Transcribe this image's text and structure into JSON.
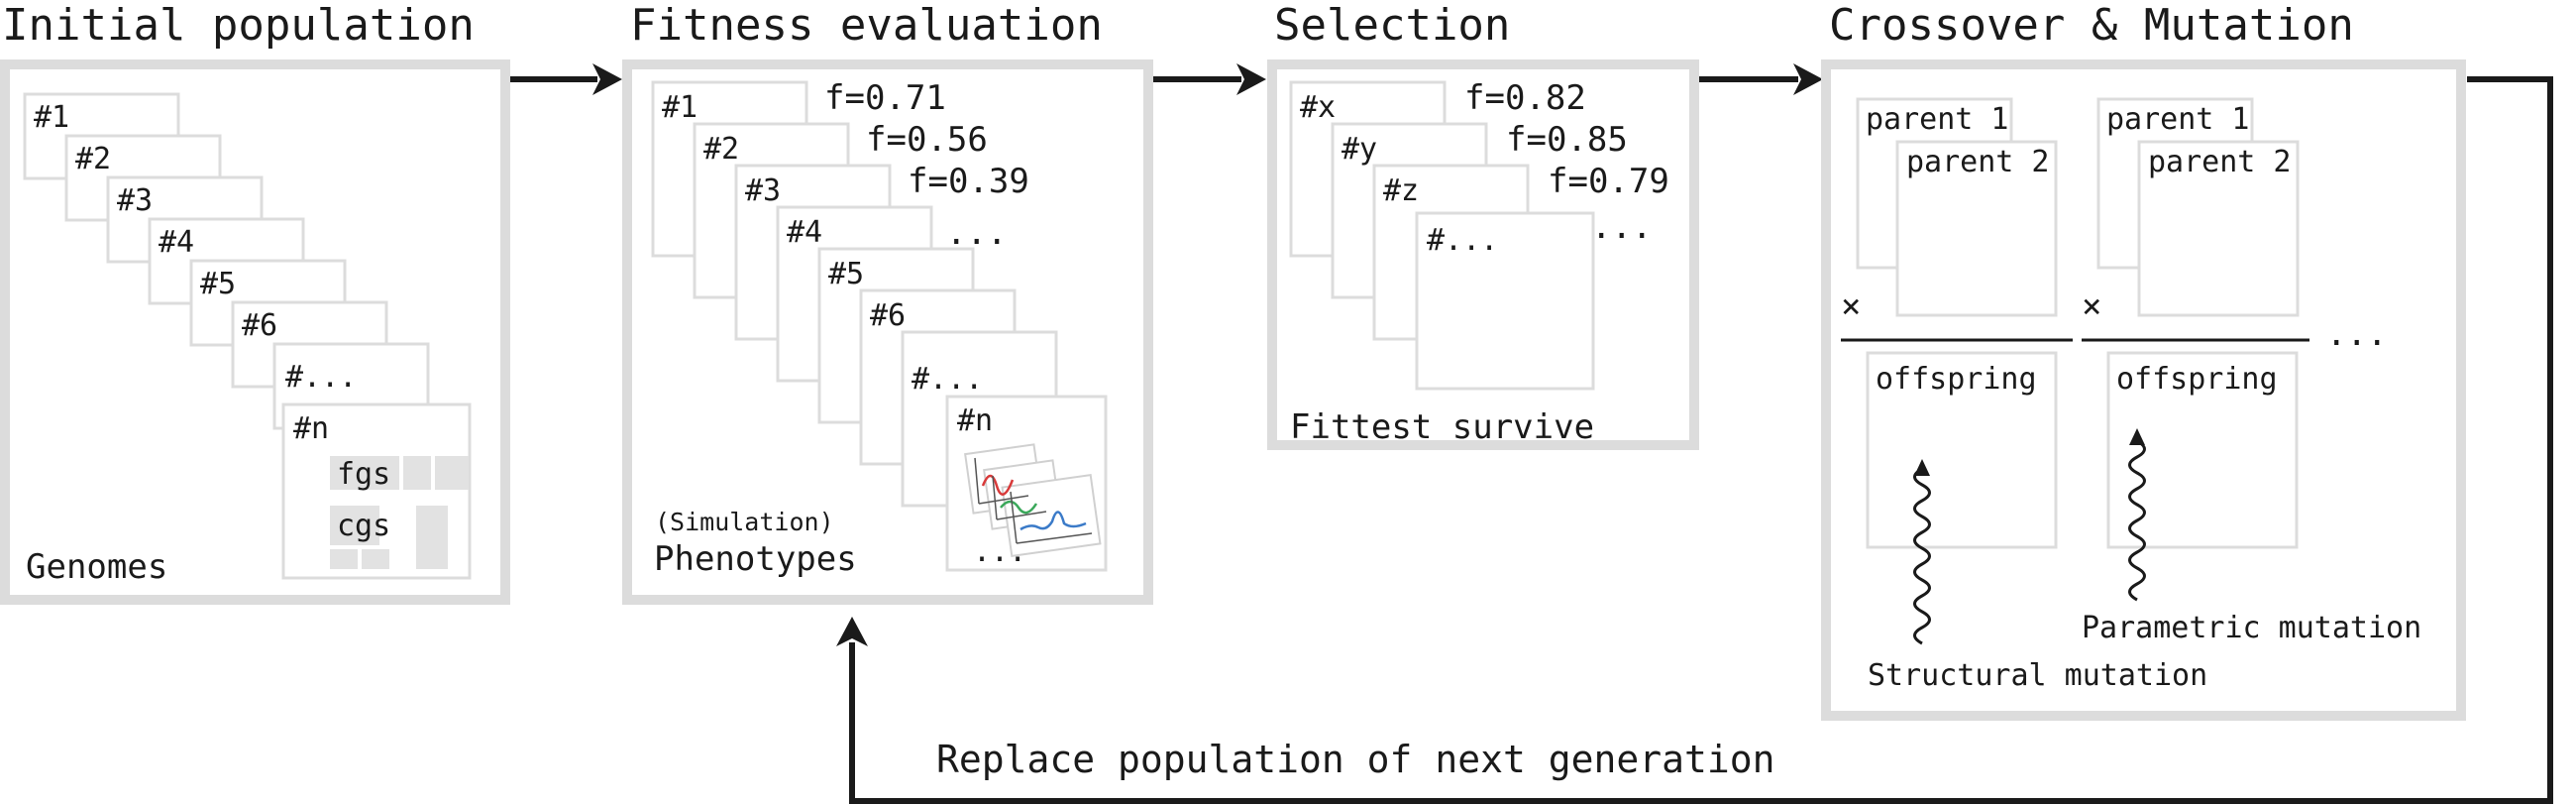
{
  "stages": [
    {
      "title": "Initial population",
      "caption": "Genomes"
    },
    {
      "title": "Fitness evaluation",
      "caption": "Phenotypes",
      "subcaption": "(Simulation)"
    },
    {
      "title": "Selection",
      "caption": "Fittest survive"
    },
    {
      "title": "Crossover & Mutation"
    }
  ],
  "initial": {
    "cards": [
      "#1",
      "#2",
      "#3",
      "#4",
      "#5",
      "#6",
      "#...",
      "#n"
    ],
    "genes": [
      "fgs",
      "cgs"
    ]
  },
  "fitness": {
    "cards": [
      "#1",
      "#2",
      "#3",
      "#4",
      "#5",
      "#6",
      "#...",
      "#n"
    ],
    "scores": [
      "f=0.71",
      "f=0.56",
      "f=0.39",
      "..."
    ],
    "ellipsis": "..."
  },
  "selection": {
    "cards": [
      "#x",
      "#y",
      "#z",
      "#..."
    ],
    "scores": [
      "f=0.82",
      "f=0.85",
      "f=0.79",
      "..."
    ]
  },
  "crossover": {
    "parent1": "parent 1",
    "parent2": "parent 2",
    "cross_symbol": "×",
    "offspring": "offspring",
    "ellipsis": "...",
    "structural": "Structural mutation",
    "parametric": "Parametric mutation"
  },
  "loop_label": "Replace population of next generation",
  "colors": {
    "panel_border": "#dcdcdc",
    "ink": "#1a1a1a",
    "plot_red": "#d83a3a",
    "plot_green": "#3aa85a",
    "plot_blue": "#3a7ac8"
  }
}
